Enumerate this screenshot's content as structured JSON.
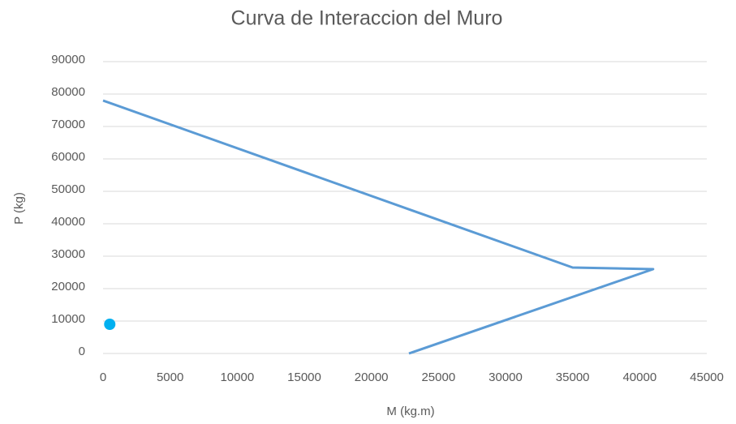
{
  "chart_data": {
    "type": "scatter",
    "title": "Curva de Interaccion del Muro",
    "x_label": "M (kg.m)",
    "y_label": "P (kg)",
    "series": [
      {
        "color": "#5b9bd5",
        "mode": "line",
        "x": [
          0,
          35000,
          41000,
          22800
        ],
        "values": [
          78000,
          26500,
          26000,
          0
        ]
      },
      {
        "color": "#00b0f0",
        "mode": "marker",
        "x": [
          500
        ],
        "values": [
          9000
        ]
      }
    ],
    "xlim": [
      0,
      45000
    ],
    "xticks": [
      0,
      5000,
      10000,
      15000,
      20000,
      25000,
      30000,
      35000,
      40000,
      45000
    ],
    "ylim": [
      0,
      90000
    ],
    "yticks": [
      0,
      10000,
      20000,
      30000,
      40000,
      50000,
      60000,
      70000,
      80000,
      90000
    ],
    "grid": true
  }
}
